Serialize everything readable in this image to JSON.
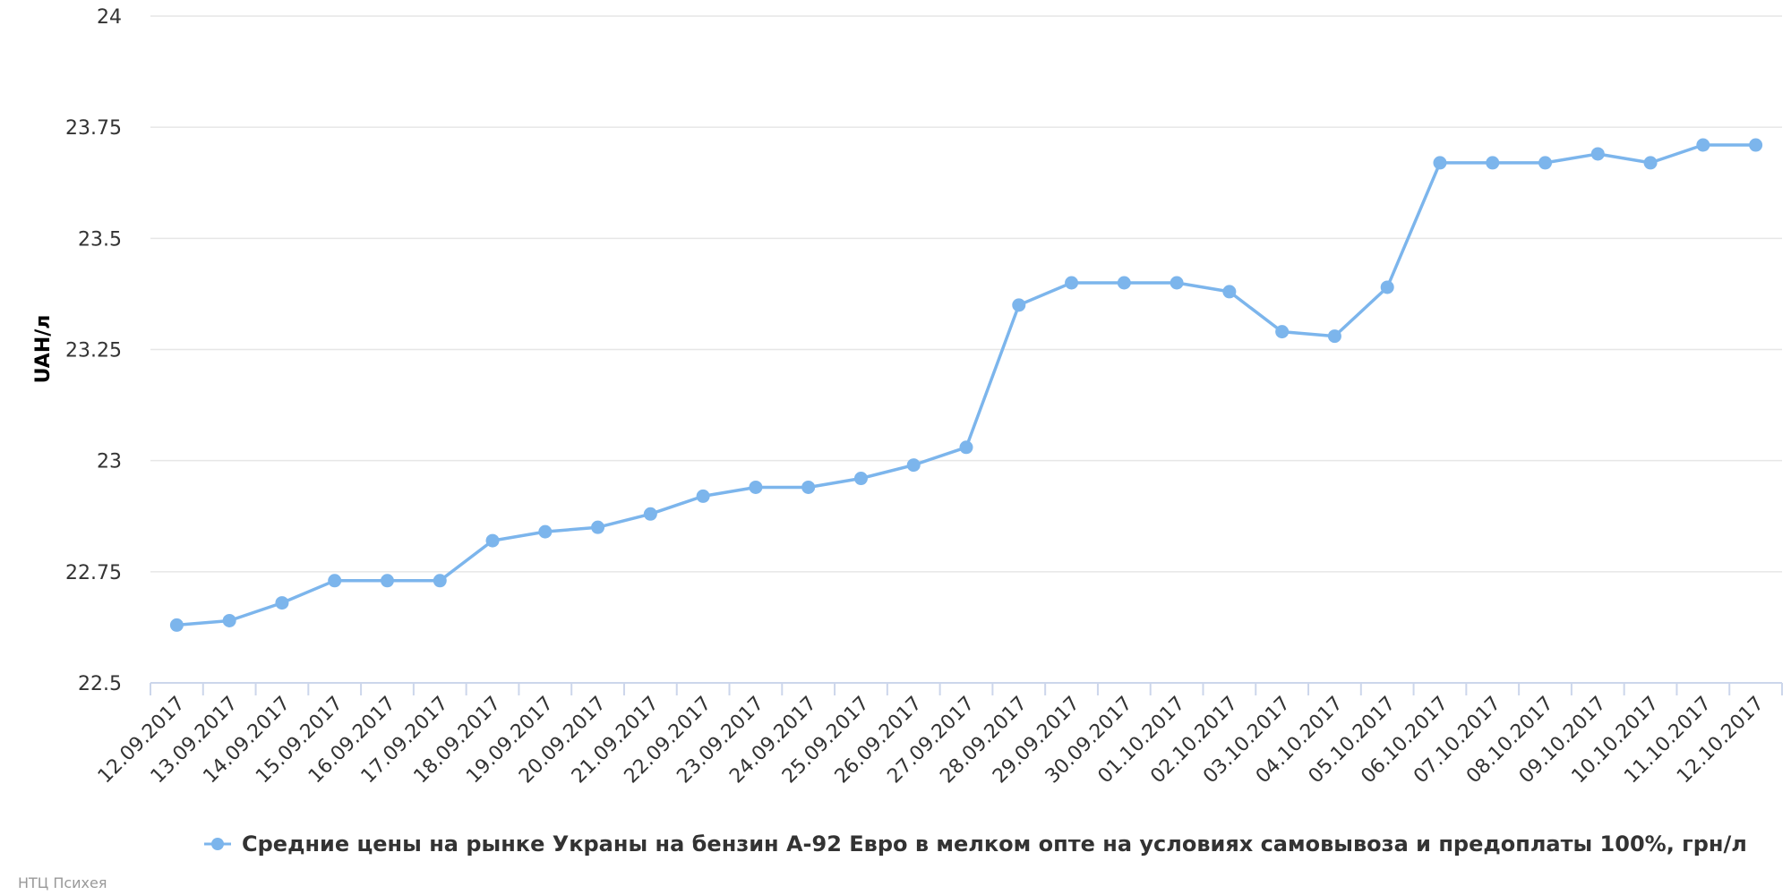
{
  "chart_data": {
    "type": "line",
    "title": "",
    "xlabel": "",
    "ylabel": "UAH/л",
    "ylim": [
      22.5,
      24
    ],
    "yticks": [
      "22.5",
      "22.75",
      "23",
      "23.25",
      "23.5",
      "23.75",
      "24"
    ],
    "grid": true,
    "legend_position": "bottom-center",
    "categories": [
      "12.09.2017",
      "13.09.2017",
      "14.09.2017",
      "15.09.2017",
      "16.09.2017",
      "17.09.2017",
      "18.09.2017",
      "19.09.2017",
      "20.09.2017",
      "21.09.2017",
      "22.09.2017",
      "23.09.2017",
      "24.09.2017",
      "25.09.2017",
      "26.09.2017",
      "27.09.2017",
      "28.09.2017",
      "29.09.2017",
      "30.09.2017",
      "01.10.2017",
      "02.10.2017",
      "03.10.2017",
      "04.10.2017",
      "05.10.2017",
      "06.10.2017",
      "07.10.2017",
      "08.10.2017",
      "09.10.2017",
      "10.10.2017",
      "11.10.2017",
      "12.10.2017"
    ],
    "series": [
      {
        "name": "Средние цены на рынке Украны на бензин А-92 Евро в мелком опте на условиях самовывоза и предоплаты 100%, грн/л",
        "color": "#7cb5ec",
        "values": [
          22.63,
          22.64,
          22.68,
          22.73,
          22.73,
          22.73,
          22.82,
          22.84,
          22.85,
          22.88,
          22.92,
          22.94,
          22.94,
          22.96,
          22.99,
          23.03,
          23.35,
          23.4,
          23.4,
          23.4,
          23.38,
          23.29,
          23.28,
          23.39,
          23.67,
          23.67,
          23.67,
          23.69,
          23.67,
          23.71,
          23.71
        ]
      }
    ]
  },
  "credit": "НТЦ Психея"
}
